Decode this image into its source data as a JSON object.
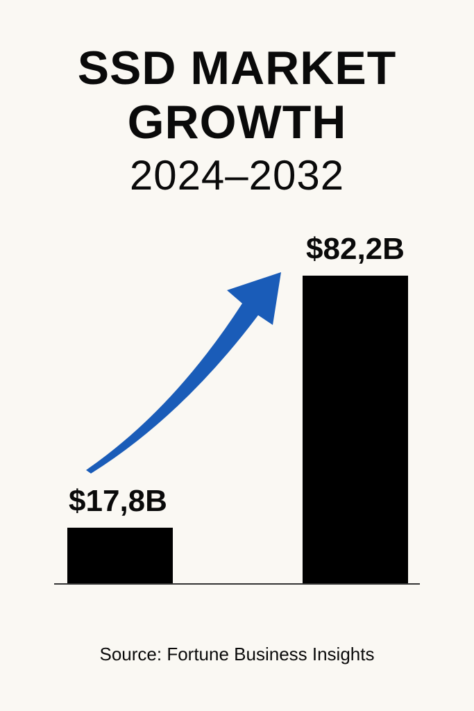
{
  "chart_data": {
    "type": "bar",
    "title": "SSD MARKET GROWTH",
    "title_line1": "SSD MARKET",
    "title_line2": "GROWTH",
    "subtitle": "2024–2032",
    "values": [
      17.8,
      82.2
    ],
    "value_labels": [
      "$17,8B",
      "$82,2B"
    ],
    "unit": "USD billions",
    "ylim": [
      0,
      82.2
    ],
    "grid": false,
    "annotation": "blue upward arrow from first bar to second bar",
    "source": "Source: Fortune Business Insights"
  },
  "colors": {
    "background": "#faf8f3",
    "bar": "#000000",
    "arrow": "#1a5cb8"
  }
}
